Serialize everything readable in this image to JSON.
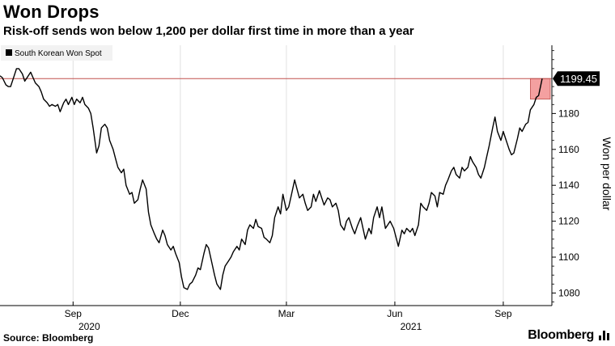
{
  "header": {
    "title": "Won Drops",
    "subtitle": "Risk-off sends won below 1,200 per dollar first time in more than a year"
  },
  "footer": {
    "source": "Source: Bloomberg",
    "brand": "Bloomberg"
  },
  "colors": {
    "line": "#000000",
    "reference_line": "#c0504d",
    "highlight_fill": "#f4a0a0",
    "highlight_stroke": "#c0504d",
    "grid": "#e0e0e0",
    "last_value_badge": "#000000"
  },
  "icons": {
    "brand_mark": "bloomberg-bars-icon"
  },
  "chart_data": {
    "type": "line",
    "title": "Won Drops",
    "subtitle": "Risk-off sends won below 1,200 per dollar first time in more than a year",
    "ylabel": "Won per dollar",
    "xlabel": "",
    "ylim": [
      1073,
      1218
    ],
    "yticks": [
      1080,
      1100,
      1120,
      1140,
      1160,
      1180
    ],
    "xlim": [
      "2020-07-01",
      "2021-10-04"
    ],
    "xticks": [
      {
        "date": "2020-09-01",
        "label": "Sep",
        "year": "2020"
      },
      {
        "date": "2020-12-01",
        "label": "Dec",
        "year": ""
      },
      {
        "date": "2021-03-01",
        "label": "Mar",
        "year": ""
      },
      {
        "date": "2021-06-01",
        "label": "Jun",
        "year": "2021"
      },
      {
        "date": "2021-09-01",
        "label": "Sep",
        "year": ""
      }
    ],
    "grid": "vertical",
    "legend": {
      "position": "top-left",
      "entries": [
        "South Korean Won Spot"
      ]
    },
    "last_value": 1199.45,
    "reference_line": 1199.45,
    "highlight": {
      "from": "2021-09-24",
      "to": "2021-10-04",
      "low": 1188,
      "high": 1199.45
    },
    "series": [
      {
        "name": "South Korean Won Spot",
        "points": [
          [
            "2020-07-01",
            1201
          ],
          [
            "2020-07-03",
            1200
          ],
          [
            "2020-07-06",
            1196
          ],
          [
            "2020-07-08",
            1195
          ],
          [
            "2020-07-10",
            1195
          ],
          [
            "2020-07-13",
            1201
          ],
          [
            "2020-07-15",
            1205
          ],
          [
            "2020-07-17",
            1205
          ],
          [
            "2020-07-20",
            1202
          ],
          [
            "2020-07-22",
            1198
          ],
          [
            "2020-07-24",
            1200
          ],
          [
            "2020-07-27",
            1203
          ],
          [
            "2020-07-29",
            1200
          ],
          [
            "2020-07-31",
            1197
          ],
          [
            "2020-08-03",
            1195
          ],
          [
            "2020-08-05",
            1192
          ],
          [
            "2020-08-07",
            1188
          ],
          [
            "2020-08-10",
            1186
          ],
          [
            "2020-08-12",
            1184
          ],
          [
            "2020-08-14",
            1185
          ],
          [
            "2020-08-17",
            1184
          ],
          [
            "2020-08-19",
            1185
          ],
          [
            "2020-08-21",
            1181
          ],
          [
            "2020-08-24",
            1186
          ],
          [
            "2020-08-26",
            1188
          ],
          [
            "2020-08-28",
            1185
          ],
          [
            "2020-08-31",
            1189
          ],
          [
            "2020-09-02",
            1185
          ],
          [
            "2020-09-04",
            1188
          ],
          [
            "2020-09-07",
            1186
          ],
          [
            "2020-09-09",
            1189
          ],
          [
            "2020-09-11",
            1185
          ],
          [
            "2020-09-14",
            1183
          ],
          [
            "2020-09-16",
            1180
          ],
          [
            "2020-09-18",
            1172
          ],
          [
            "2020-09-21",
            1158
          ],
          [
            "2020-09-23",
            1162
          ],
          [
            "2020-09-25",
            1172
          ],
          [
            "2020-09-28",
            1174
          ],
          [
            "2020-09-30",
            1172
          ],
          [
            "2020-10-02",
            1165
          ],
          [
            "2020-10-05",
            1160
          ],
          [
            "2020-10-07",
            1155
          ],
          [
            "2020-10-09",
            1150
          ],
          [
            "2020-10-12",
            1147
          ],
          [
            "2020-10-14",
            1149
          ],
          [
            "2020-10-16",
            1140
          ],
          [
            "2020-10-19",
            1135
          ],
          [
            "2020-10-21",
            1136
          ],
          [
            "2020-10-23",
            1130
          ],
          [
            "2020-10-26",
            1132
          ],
          [
            "2020-10-28",
            1138
          ],
          [
            "2020-10-30",
            1143
          ],
          [
            "2020-11-02",
            1138
          ],
          [
            "2020-11-04",
            1125
          ],
          [
            "2020-11-06",
            1118
          ],
          [
            "2020-11-09",
            1113
          ],
          [
            "2020-11-11",
            1110
          ],
          [
            "2020-11-13",
            1108
          ],
          [
            "2020-11-16",
            1115
          ],
          [
            "2020-11-18",
            1112
          ],
          [
            "2020-11-20",
            1107
          ],
          [
            "2020-11-23",
            1104
          ],
          [
            "2020-11-25",
            1106
          ],
          [
            "2020-11-27",
            1102
          ],
          [
            "2020-11-30",
            1097
          ],
          [
            "2020-12-02",
            1089
          ],
          [
            "2020-12-04",
            1083
          ],
          [
            "2020-12-07",
            1082
          ],
          [
            "2020-12-09",
            1085
          ],
          [
            "2020-12-11",
            1086
          ],
          [
            "2020-12-14",
            1090
          ],
          [
            "2020-12-16",
            1094
          ],
          [
            "2020-12-18",
            1093
          ],
          [
            "2020-12-21",
            1102
          ],
          [
            "2020-12-23",
            1107
          ],
          [
            "2020-12-25",
            1105
          ],
          [
            "2020-12-28",
            1096
          ],
          [
            "2020-12-30",
            1090
          ],
          [
            "2021-01-01",
            1085
          ],
          [
            "2021-01-04",
            1082
          ],
          [
            "2021-01-06",
            1090
          ],
          [
            "2021-01-08",
            1095
          ],
          [
            "2021-01-11",
            1098
          ],
          [
            "2021-01-13",
            1100
          ],
          [
            "2021-01-15",
            1103
          ],
          [
            "2021-01-18",
            1106
          ],
          [
            "2021-01-20",
            1104
          ],
          [
            "2021-01-22",
            1110
          ],
          [
            "2021-01-25",
            1107
          ],
          [
            "2021-01-27",
            1115
          ],
          [
            "2021-01-29",
            1118
          ],
          [
            "2021-02-01",
            1116
          ],
          [
            "2021-02-03",
            1121
          ],
          [
            "2021-02-05",
            1117
          ],
          [
            "2021-02-08",
            1116
          ],
          [
            "2021-02-10",
            1111
          ],
          [
            "2021-02-12",
            1110
          ],
          [
            "2021-02-15",
            1108
          ],
          [
            "2021-02-17",
            1112
          ],
          [
            "2021-02-19",
            1122
          ],
          [
            "2021-02-22",
            1128
          ],
          [
            "2021-02-24",
            1124
          ],
          [
            "2021-02-26",
            1135
          ],
          [
            "2021-03-01",
            1126
          ],
          [
            "2021-03-03",
            1128
          ],
          [
            "2021-03-05",
            1134
          ],
          [
            "2021-03-08",
            1143
          ],
          [
            "2021-03-10",
            1138
          ],
          [
            "2021-03-12",
            1133
          ],
          [
            "2021-03-15",
            1135
          ],
          [
            "2021-03-17",
            1130
          ],
          [
            "2021-03-19",
            1126
          ],
          [
            "2021-03-22",
            1128
          ],
          [
            "2021-03-24",
            1135
          ],
          [
            "2021-03-26",
            1131
          ],
          [
            "2021-03-29",
            1137
          ],
          [
            "2021-03-31",
            1133
          ],
          [
            "2021-04-02",
            1129
          ],
          [
            "2021-04-05",
            1133
          ],
          [
            "2021-04-07",
            1132
          ],
          [
            "2021-04-09",
            1128
          ],
          [
            "2021-04-12",
            1130
          ],
          [
            "2021-04-14",
            1126
          ],
          [
            "2021-04-16",
            1118
          ],
          [
            "2021-04-19",
            1115
          ],
          [
            "2021-04-21",
            1120
          ],
          [
            "2021-04-23",
            1122
          ],
          [
            "2021-04-26",
            1116
          ],
          [
            "2021-04-28",
            1113
          ],
          [
            "2021-04-30",
            1117
          ],
          [
            "2021-05-03",
            1122
          ],
          [
            "2021-05-05",
            1116
          ],
          [
            "2021-05-07",
            1110
          ],
          [
            "2021-05-10",
            1116
          ],
          [
            "2021-05-12",
            1113
          ],
          [
            "2021-05-14",
            1122
          ],
          [
            "2021-05-17",
            1128
          ],
          [
            "2021-05-19",
            1122
          ],
          [
            "2021-05-21",
            1128
          ],
          [
            "2021-05-24",
            1116
          ],
          [
            "2021-05-26",
            1118
          ],
          [
            "2021-05-28",
            1120
          ],
          [
            "2021-05-31",
            1116
          ],
          [
            "2021-06-02",
            1111
          ],
          [
            "2021-06-04",
            1106
          ],
          [
            "2021-06-07",
            1115
          ],
          [
            "2021-06-09",
            1113
          ],
          [
            "2021-06-11",
            1116
          ],
          [
            "2021-06-14",
            1114
          ],
          [
            "2021-06-16",
            1116
          ],
          [
            "2021-06-18",
            1112
          ],
          [
            "2021-06-21",
            1118
          ],
          [
            "2021-06-23",
            1130
          ],
          [
            "2021-06-25",
            1128
          ],
          [
            "2021-06-28",
            1126
          ],
          [
            "2021-06-30",
            1130
          ],
          [
            "2021-07-02",
            1136
          ],
          [
            "2021-07-05",
            1134
          ],
          [
            "2021-07-07",
            1128
          ],
          [
            "2021-07-09",
            1136
          ],
          [
            "2021-07-12",
            1135
          ],
          [
            "2021-07-14",
            1140
          ],
          [
            "2021-07-16",
            1143
          ],
          [
            "2021-07-19",
            1148
          ],
          [
            "2021-07-21",
            1150
          ],
          [
            "2021-07-23",
            1146
          ],
          [
            "2021-07-26",
            1144
          ],
          [
            "2021-07-28",
            1150
          ],
          [
            "2021-07-30",
            1148
          ],
          [
            "2021-08-02",
            1150
          ],
          [
            "2021-08-04",
            1156
          ],
          [
            "2021-08-06",
            1153
          ],
          [
            "2021-08-09",
            1150
          ],
          [
            "2021-08-11",
            1146
          ],
          [
            "2021-08-13",
            1144
          ],
          [
            "2021-08-16",
            1150
          ],
          [
            "2021-08-18",
            1156
          ],
          [
            "2021-08-20",
            1162
          ],
          [
            "2021-08-23",
            1172
          ],
          [
            "2021-08-25",
            1178
          ],
          [
            "2021-08-27",
            1170
          ],
          [
            "2021-08-30",
            1165
          ],
          [
            "2021-09-01",
            1170
          ],
          [
            "2021-09-03",
            1166
          ],
          [
            "2021-09-06",
            1160
          ],
          [
            "2021-09-08",
            1157
          ],
          [
            "2021-09-10",
            1158
          ],
          [
            "2021-09-13",
            1166
          ],
          [
            "2021-09-15",
            1172
          ],
          [
            "2021-09-17",
            1170
          ],
          [
            "2021-09-20",
            1174
          ],
          [
            "2021-09-22",
            1175
          ],
          [
            "2021-09-24",
            1182
          ],
          [
            "2021-09-27",
            1185
          ],
          [
            "2021-09-29",
            1189
          ],
          [
            "2021-10-01",
            1190
          ],
          [
            "2021-10-04",
            1199.45
          ]
        ]
      }
    ]
  }
}
